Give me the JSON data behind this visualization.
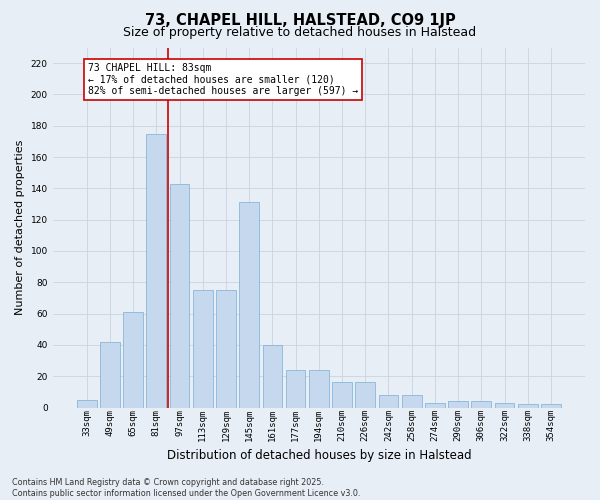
{
  "title": "73, CHAPEL HILL, HALSTEAD, CO9 1JP",
  "subtitle": "Size of property relative to detached houses in Halstead",
  "xlabel": "Distribution of detached houses by size in Halstead",
  "ylabel": "Number of detached properties",
  "categories": [
    "33sqm",
    "49sqm",
    "65sqm",
    "81sqm",
    "97sqm",
    "113sqm",
    "129sqm",
    "145sqm",
    "161sqm",
    "177sqm",
    "194sqm",
    "210sqm",
    "226sqm",
    "242sqm",
    "258sqm",
    "274sqm",
    "290sqm",
    "306sqm",
    "322sqm",
    "338sqm",
    "354sqm"
  ],
  "values": [
    5,
    42,
    61,
    175,
    143,
    75,
    75,
    131,
    40,
    24,
    24,
    16,
    16,
    8,
    8,
    3,
    4,
    4,
    3,
    2,
    2
  ],
  "bar_color": "#c5d8ed",
  "bar_edge_color": "#7aadd4",
  "grid_color": "#c8d4e4",
  "background_color": "#e8eef6",
  "vline_x": 3.5,
  "vline_color": "#cc0000",
  "annotation_text": "73 CHAPEL HILL: 83sqm\n← 17% of detached houses are smaller (120)\n82% of semi-detached houses are larger (597) →",
  "annotation_box_facecolor": "#ffffff",
  "annotation_box_edgecolor": "#cc0000",
  "ylim": [
    0,
    230
  ],
  "yticks": [
    0,
    20,
    40,
    60,
    80,
    100,
    120,
    140,
    160,
    180,
    200,
    220
  ],
  "footer": "Contains HM Land Registry data © Crown copyright and database right 2025.\nContains public sector information licensed under the Open Government Licence v3.0.",
  "title_fontsize": 10.5,
  "subtitle_fontsize": 9,
  "xlabel_fontsize": 8.5,
  "ylabel_fontsize": 8,
  "tick_fontsize": 6.5,
  "annotation_fontsize": 7,
  "footer_fontsize": 5.8
}
